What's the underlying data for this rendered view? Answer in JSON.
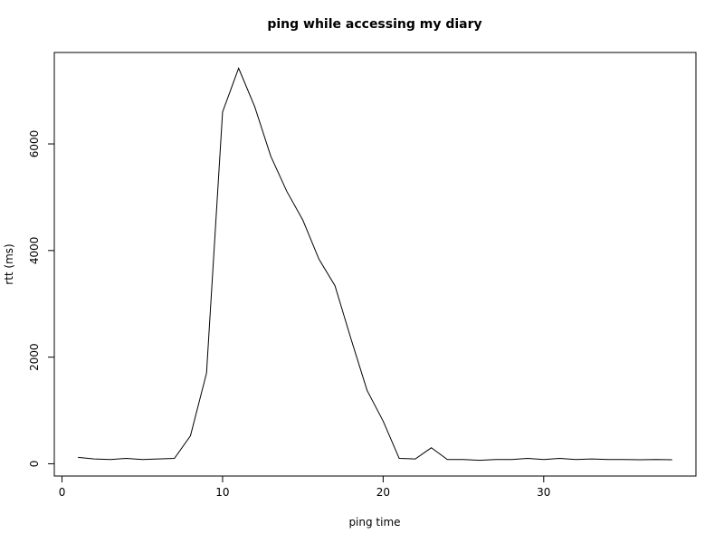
{
  "chart_data": {
    "type": "line",
    "title": "ping while accessing my diary",
    "x_label": "ping time",
    "y_label": "rtt (ms)",
    "x": [
      1,
      2,
      3,
      4,
      5,
      6,
      7,
      8,
      9,
      10,
      11,
      12,
      13,
      14,
      15,
      16,
      17,
      18,
      19,
      20,
      21,
      22,
      23,
      24,
      25,
      26,
      27,
      28,
      29,
      30,
      31,
      32,
      33,
      34,
      35,
      36,
      37,
      38
    ],
    "series": [
      {
        "color": "#000000",
        "values": [
          120,
          90,
          80,
          100,
          80,
          90,
          100,
          525,
          1700,
          6600,
          7420,
          6700,
          5770,
          5110,
          4570,
          3840,
          3340,
          2340,
          1375,
          800,
          100,
          90,
          300,
          80,
          80,
          65,
          80,
          80,
          100,
          80,
          100,
          80,
          90,
          80,
          80,
          75,
          80,
          75
        ]
      }
    ],
    "xlim": [
      -0.48,
      39.48
    ],
    "ylim": [
      -230,
      7715
    ],
    "xticks": [
      0,
      10,
      20,
      30
    ],
    "yticks": [
      0,
      2000,
      4000,
      6000
    ]
  }
}
